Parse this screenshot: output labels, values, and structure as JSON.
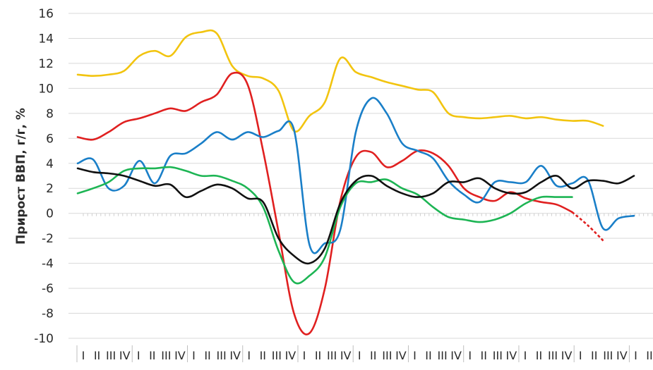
{
  "chart_data": {
    "type": "line",
    "ylabel": "Прирост ВВП, г/г, %",
    "xlabel": "",
    "ylim": [
      -10,
      16
    ],
    "yticks": [
      16,
      14,
      12,
      10,
      8,
      6,
      4,
      2,
      0,
      -2,
      -4,
      -6,
      -8,
      -10
    ],
    "grid": "horizontal",
    "x_quarter_labels": [
      "I",
      "II",
      "III",
      "IV",
      "I",
      "II",
      "III",
      "IV",
      "I",
      "II",
      "III",
      "IV",
      "I",
      "II",
      "III",
      "IV",
      "I",
      "II",
      "III",
      "IV",
      "I",
      "II",
      "III",
      "IV",
      "I",
      "II",
      "III",
      "IV",
      "I",
      "II",
      "III",
      "IV",
      "I",
      "II",
      "III",
      "IV",
      "I",
      "II",
      "III",
      "IV",
      "I",
      "II"
    ],
    "series": [
      {
        "color": "#f2c40f",
        "values": [
          11.1,
          11.0,
          11.1,
          11.4,
          12.6,
          13.0,
          12.6,
          14.1,
          14.5,
          14.4,
          11.8,
          11.0,
          10.8,
          9.8,
          6.6,
          7.8,
          8.9,
          12.4,
          11.3,
          10.9,
          10.5,
          10.2,
          9.9,
          9.7,
          8.0,
          7.7,
          7.6,
          7.7,
          7.8,
          7.6,
          7.7,
          7.5,
          7.4,
          7.4,
          7.0
        ]
      },
      {
        "color": "#e02020",
        "values": [
          6.1,
          5.9,
          6.5,
          7.3,
          7.6,
          8.0,
          8.4,
          8.2,
          8.9,
          9.5,
          11.2,
          10.3,
          5.0,
          -1.5,
          -8.0,
          -9.6,
          -6.0,
          1.0,
          4.5,
          4.9,
          3.7,
          4.2,
          5.0,
          4.8,
          3.8,
          2.0,
          1.3,
          1.0,
          1.7,
          1.2,
          0.9,
          0.7,
          0.1
        ]
      },
      {
        "color": "#1a7fc8",
        "values": [
          4.0,
          4.3,
          2.0,
          2.2,
          4.2,
          2.4,
          4.6,
          4.8,
          5.6,
          6.5,
          5.9,
          6.5,
          6.1,
          6.6,
          6.7,
          -2.5,
          -2.4,
          -1.3,
          6.5,
          9.2,
          8.0,
          5.6,
          5.0,
          4.4,
          2.6,
          1.5,
          0.9,
          2.5,
          2.5,
          2.5,
          3.8,
          2.2,
          2.4,
          2.7,
          -1.2,
          -0.4,
          -0.2
        ]
      },
      {
        "color": "#1db554",
        "values": [
          1.6,
          2.0,
          2.5,
          3.4,
          3.6,
          3.6,
          3.7,
          3.4,
          3.0,
          3.0,
          2.6,
          2.0,
          0.5,
          -3.0,
          -5.5,
          -5.0,
          -3.5,
          0.5,
          2.4,
          2.5,
          2.7,
          2.0,
          1.5,
          0.5,
          -0.3,
          -0.5,
          -0.7,
          -0.5,
          0.0,
          0.8,
          1.3,
          1.3,
          1.3
        ]
      },
      {
        "color": "#111111",
        "values": [
          3.6,
          3.3,
          3.2,
          3.0,
          2.6,
          2.2,
          2.3,
          1.3,
          1.8,
          2.3,
          2.0,
          1.2,
          0.9,
          -2.0,
          -3.4,
          -4.0,
          -2.8,
          0.8,
          2.6,
          3.0,
          2.2,
          1.6,
          1.3,
          1.6,
          2.5,
          2.5,
          2.8,
          2.0,
          1.6,
          1.7,
          2.5,
          3.0,
          2.0,
          2.6,
          2.6,
          2.4,
          3.0
        ]
      }
    ],
    "dashed_segment": {
      "color": "#e02020",
      "values": [
        0.1,
        -1.0,
        -2.3
      ]
    }
  }
}
